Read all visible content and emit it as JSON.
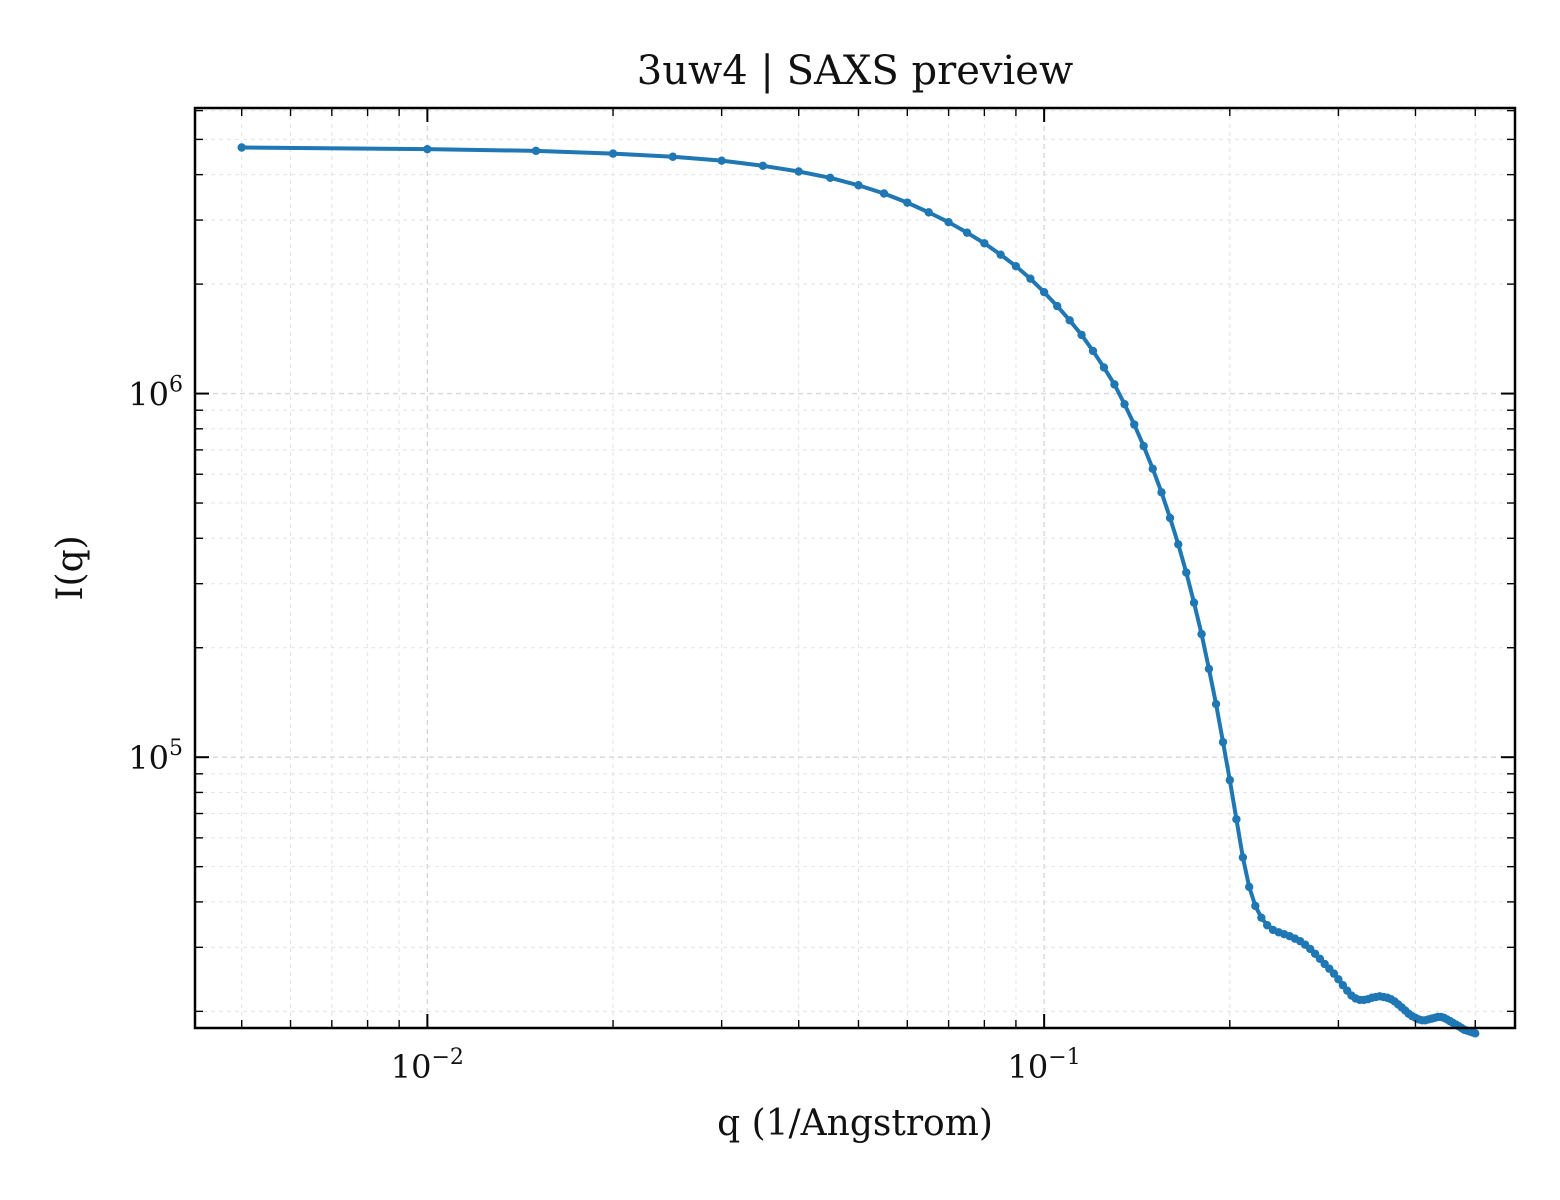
{
  "chart_data": {
    "type": "line",
    "title": "3uw4 | SAXS preview",
    "xlabel": "q (1/Angstrom)",
    "ylabel": "I(q)",
    "xscale": "log",
    "yscale": "log",
    "xlim": [
      0.0042,
      0.58
    ],
    "ylim": [
      18000,
      6100000
    ],
    "grid": true,
    "x_ticks": [
      {
        "value": 0.01,
        "base": "10",
        "exp": "−2"
      },
      {
        "value": 0.1,
        "base": "10",
        "exp": "−1"
      }
    ],
    "y_ticks": [
      {
        "value": 100000,
        "base": "10",
        "exp": "5"
      },
      {
        "value": 1000000,
        "base": "10",
        "exp": "6"
      }
    ],
    "series": [
      {
        "color": "#1f77b4",
        "marker": "circle",
        "x": [
          0.005,
          0.01,
          0.015,
          0.02,
          0.025,
          0.03,
          0.035,
          0.04,
          0.045,
          0.05,
          0.055,
          0.06,
          0.065,
          0.07,
          0.075,
          0.08,
          0.085,
          0.09,
          0.095,
          0.1,
          0.105,
          0.11,
          0.115,
          0.12,
          0.125,
          0.13,
          0.135,
          0.14,
          0.145,
          0.15,
          0.155,
          0.16,
          0.165,
          0.17,
          0.175,
          0.18,
          0.185,
          0.19,
          0.195,
          0.2,
          0.205,
          0.21,
          0.215,
          0.22,
          0.225,
          0.23,
          0.235,
          0.24,
          0.245,
          0.25,
          0.255,
          0.26,
          0.265,
          0.27,
          0.275,
          0.28,
          0.285,
          0.29,
          0.295,
          0.3,
          0.305,
          0.31,
          0.315,
          0.32,
          0.325,
          0.33,
          0.335,
          0.34,
          0.345,
          0.35,
          0.355,
          0.36,
          0.365,
          0.37,
          0.375,
          0.38,
          0.385,
          0.39,
          0.395,
          0.4,
          0.405,
          0.41,
          0.415,
          0.42,
          0.425,
          0.43,
          0.435,
          0.44,
          0.445,
          0.45,
          0.455,
          0.46,
          0.465,
          0.47,
          0.475,
          0.48,
          0.485,
          0.49,
          0.495,
          0.5
        ],
        "y": [
          4750000,
          4700000,
          4650000,
          4570000,
          4480000,
          4370000,
          4230000,
          4080000,
          3920000,
          3740000,
          3550000,
          3350000,
          3150000,
          2960000,
          2770000,
          2590000,
          2410000,
          2240000,
          2070000,
          1900000,
          1740000,
          1590000,
          1450000,
          1310000,
          1180000,
          1060000,
          935000,
          822000,
          717000,
          621000,
          535000,
          455000,
          385000,
          322000,
          266000,
          218000,
          175000,
          140000,
          110000,
          86500,
          67500,
          53000,
          44000,
          39000,
          36200,
          34500,
          33500,
          33000,
          32600,
          32200,
          31700,
          31200,
          30500,
          29700,
          28800,
          27900,
          27000,
          26200,
          25400,
          24500,
          23600,
          22800,
          22100,
          21700,
          21500,
          21500,
          21600,
          21800,
          21900,
          22000,
          21900,
          21800,
          21600,
          21300,
          20900,
          20500,
          20100,
          19700,
          19400,
          19200,
          19000,
          18900,
          18900,
          19000,
          19100,
          19200,
          19300,
          19300,
          19200,
          19000,
          18800,
          18600,
          18400,
          18200,
          18000,
          17800,
          17700,
          17600,
          17500,
          17400
        ]
      }
    ]
  }
}
